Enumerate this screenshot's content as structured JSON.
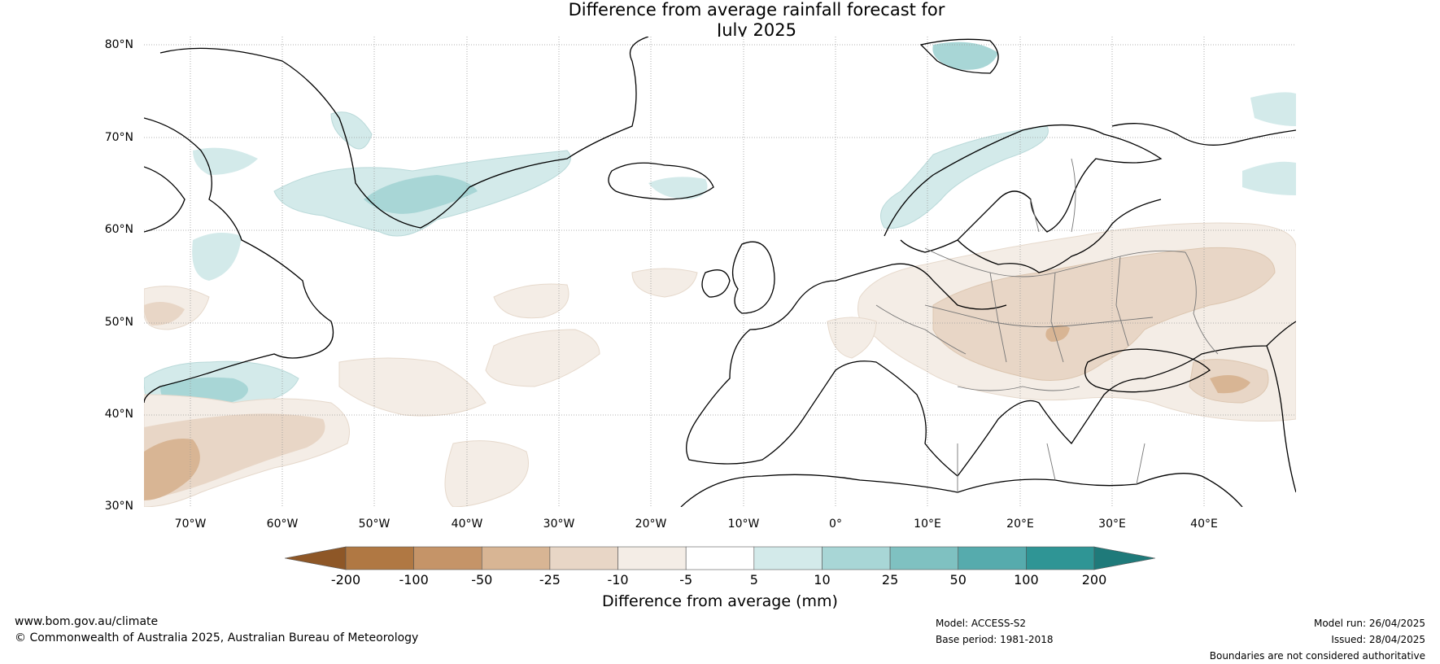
{
  "title_line1": "Difference from average rainfall forecast for",
  "title_line2": "July 2025",
  "lat_labels": [
    "80°N",
    "70°N",
    "60°N",
    "50°N",
    "40°N",
    "30°N"
  ],
  "lon_labels": [
    "70°W",
    "60°W",
    "50°W",
    "40°W",
    "30°W",
    "20°W",
    "10°W",
    "0°",
    "10°E",
    "20°E",
    "30°E",
    "40°E"
  ],
  "colorbar": {
    "ticks": [
      "-200",
      "-100",
      "-50",
      "-25",
      "-10",
      "-5",
      "5",
      "10",
      "25",
      "50",
      "100",
      "200"
    ],
    "colors": [
      "#8e5727",
      "#b07843",
      "#c59468",
      "#d8b594",
      "#e8d6c6",
      "#f4ede6",
      "#ffffff",
      "#d3eaea",
      "#a8d6d6",
      "#7fc1c1",
      "#56abad",
      "#2f9595",
      "#1f7a7a"
    ],
    "label": "Difference from average (mm)"
  },
  "footer": {
    "site": "www.bom.gov.au/climate",
    "copyright": "© Commonwealth of Australia 2025, Australian Bureau of Meteorology",
    "model": "Model: ACCESS-S2",
    "base_period": "Base period: 1981-2018",
    "model_run": "Model run: 26/04/2025",
    "issued": "Issued: 28/04/2025",
    "disclaimer": "Boundaries are not considered authoritative"
  }
}
